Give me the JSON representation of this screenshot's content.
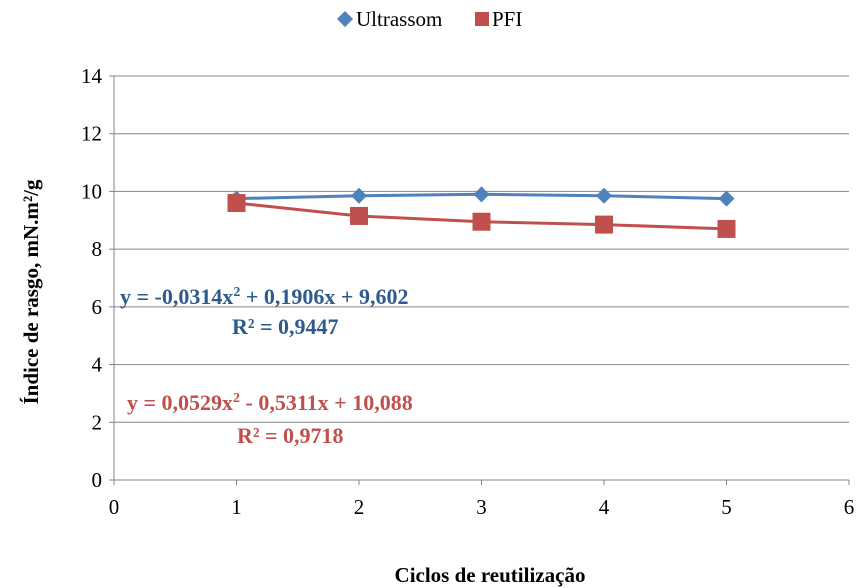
{
  "chart_data": {
    "type": "line",
    "xlabel": "Ciclos de reutilização",
    "ylabel": "Índice de rasgo, mN.m²/g",
    "xlim": [
      0,
      6
    ],
    "ylim": [
      0,
      14
    ],
    "xticks": [
      0,
      1,
      2,
      3,
      4,
      5,
      6
    ],
    "yticks": [
      0,
      2,
      4,
      6,
      8,
      10,
      12,
      14
    ],
    "grid": "horizontal",
    "legend_position": "top",
    "series": [
      {
        "name": "Ultrassom",
        "marker": "diamond",
        "color": "#4F81BD",
        "x": [
          1,
          2,
          3,
          4,
          5
        ],
        "values": [
          9.75,
          9.85,
          9.9,
          9.85,
          9.75
        ],
        "equation": {
          "main": "y = -0,0314x",
          "sup": "2",
          "rest": " + 0,1906x + 9,602",
          "r2": "R² = 0,9447",
          "color": "#2E5B8E"
        }
      },
      {
        "name": "PFI",
        "marker": "square",
        "color": "#C0504D",
        "x": [
          1,
          2,
          3,
          4,
          5
        ],
        "values": [
          9.6,
          9.15,
          8.95,
          8.85,
          8.7
        ],
        "equation": {
          "main": "y = 0,0529x",
          "sup": "2",
          "rest": " - 0,5311x + 10,088",
          "r2": "R² = 0,9718",
          "color": "#C0504D"
        }
      }
    ]
  }
}
